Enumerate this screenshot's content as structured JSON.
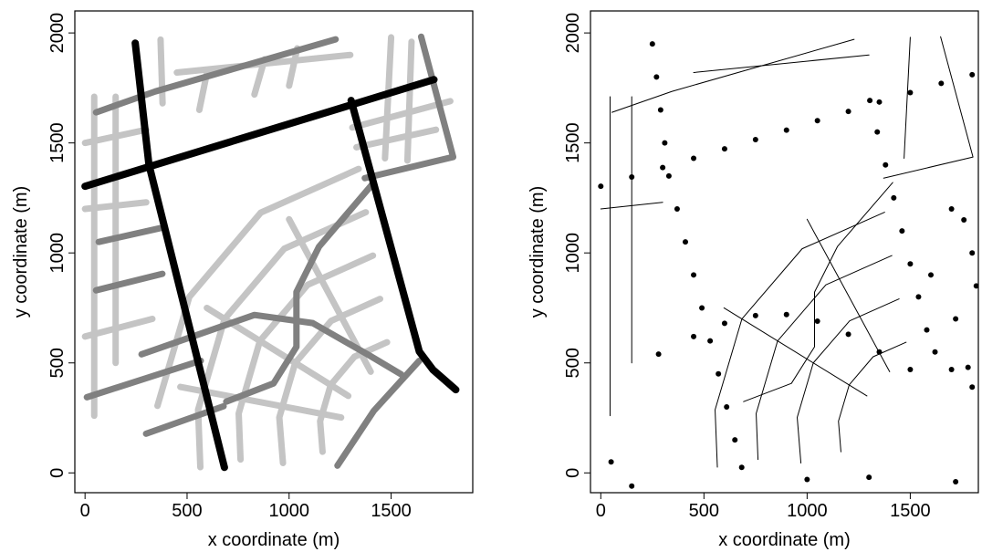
{
  "chart_data": [
    {
      "type": "line",
      "xlabel": "x coordinate (m)",
      "ylabel": "y coordinate (m)",
      "xlim": [
        -50,
        1900
      ],
      "ylim": [
        -90,
        2100
      ],
      "xticks": [
        0,
        500,
        1000,
        1500
      ],
      "yticks": [
        0,
        500,
        1000,
        1500,
        2000
      ],
      "series": [
        {
          "color": "#c4c4c4",
          "width": 7,
          "x": [
            45,
            45
          ],
          "y": [
            1710,
            260
          ]
        },
        {
          "color": "#c4c4c4",
          "width": 7,
          "x": [
            150,
            150
          ],
          "y": [
            1710,
            500
          ]
        },
        {
          "color": "#c4c4c4",
          "width": 7,
          "x": [
            0,
            300
          ],
          "y": [
            1500,
            1560
          ]
        },
        {
          "color": "#c4c4c4",
          "width": 7,
          "x": [
            0,
            300
          ],
          "y": [
            1200,
            1230
          ]
        },
        {
          "color": "#c4c4c4",
          "width": 7,
          "x": [
            0,
            330
          ],
          "y": [
            620,
            700
          ]
        },
        {
          "color": "#c4c4c4",
          "width": 7,
          "x": [
            370,
            380
          ],
          "y": [
            1970,
            1680
          ]
        },
        {
          "color": "#c4c4c4",
          "width": 7,
          "x": [
            600,
            560
          ],
          "y": [
            1830,
            1650
          ]
        },
        {
          "color": "#c4c4c4",
          "width": 7,
          "x": [
            880,
            830
          ],
          "y": [
            1880,
            1720
          ]
        },
        {
          "color": "#c4c4c4",
          "width": 7,
          "x": [
            1040,
            1000
          ],
          "y": [
            1930,
            1760
          ]
        },
        {
          "color": "#c4c4c4",
          "width": 7,
          "x": [
            1500,
            1470
          ],
          "y": [
            1980,
            1430
          ]
        },
        {
          "color": "#c4c4c4",
          "width": 7,
          "x": [
            1600,
            1580
          ],
          "y": [
            1960,
            1420
          ]
        },
        {
          "color": "#c4c4c4",
          "width": 7,
          "x": [
            450,
            1300
          ],
          "y": [
            1820,
            1900
          ]
        },
        {
          "color": "#c4c4c4",
          "width": 7,
          "x": [
            1330,
            1720
          ],
          "y": [
            1480,
            1560
          ]
        },
        {
          "color": "#c4c4c4",
          "width": 7,
          "x": [
            1310,
            1790
          ],
          "y": [
            1570,
            1690
          ]
        },
        {
          "color": "#c4c4c4",
          "width": 7,
          "x": [
            1480,
            1320,
            1204,
            1152,
            1164
          ],
          "y": [
            594,
            528,
            400,
            235,
            96
          ]
        },
        {
          "color": "#c4c4c4",
          "width": 7,
          "x": [
            1446,
            1206,
            1030,
            952,
            970
          ],
          "y": [
            791,
            691,
            500,
            252,
            45
          ]
        },
        {
          "color": "#c4c4c4",
          "width": 7,
          "x": [
            1411,
            1091,
            857,
            753,
            762
          ],
          "y": [
            988,
            855,
            600,
            270,
            61
          ]
        },
        {
          "color": "#c4c4c4",
          "width": 7,
          "x": [
            1376,
            976,
            684,
            554,
            565
          ],
          "y": [
            1185,
            1019,
            700,
            287,
            26
          ]
        },
        {
          "color": "#c4c4c4",
          "width": 7,
          "x": [
            1341,
            861,
            511,
            355
          ],
          "y": [
            1382,
            1183,
            800,
            305
          ]
        },
        {
          "color": "#c4c4c4",
          "width": 7,
          "x": [
            1400,
            1000
          ],
          "y": [
            460,
            1153
          ]
        },
        {
          "color": "#c4c4c4",
          "width": 7,
          "x": [
            1290,
            597
          ],
          "y": [
            350,
            750
          ]
        },
        {
          "color": "#c4c4c4",
          "width": 7,
          "x": [
            1255,
            467
          ],
          "y": [
            252,
            391
          ]
        },
        {
          "color": "#808080",
          "width": 7,
          "x": [
            54,
            344,
            1228
          ],
          "y": [
            1639,
            1734,
            1971
          ]
        },
        {
          "color": "#808080",
          "width": 7,
          "x": [
            1647,
            1804,
            1371
          ],
          "y": [
            1983,
            1436,
            1340
          ]
        },
        {
          "color": "#808080",
          "width": 7,
          "x": [
            67,
            366
          ],
          "y": [
            1050,
            1112
          ]
        },
        {
          "color": "#808080",
          "width": 7,
          "x": [
            54,
            379
          ],
          "y": [
            830,
            905
          ]
        },
        {
          "color": "#808080",
          "width": 7,
          "x": [
            277,
            830,
            1116,
            1384,
            1549
          ],
          "y": [
            539,
            718,
            681,
            539,
            448
          ]
        },
        {
          "color": "#808080",
          "width": 7,
          "x": [
            1415,
            1147,
            1036,
            1036,
            924,
            692
          ],
          "y": [
            1320,
            1029,
            822,
            573,
            407,
            324
          ]
        },
        {
          "color": "#808080",
          "width": 7,
          "x": [
            9,
            567
          ],
          "y": [
            344,
            510
          ]
        },
        {
          "color": "#808080",
          "width": 7,
          "x": [
            299,
            679
          ],
          "y": [
            178,
            303
          ]
        },
        {
          "color": "#808080",
          "width": 7,
          "x": [
            1237,
            1415,
            1638
          ],
          "y": [
            33,
            282,
            510
          ]
        },
        {
          "color": "#000000",
          "width": 8,
          "x": [
            246,
            313,
            683
          ],
          "y": [
            1954,
            1402,
            25
          ]
        },
        {
          "color": "#000000",
          "width": 8,
          "x": [
            0,
            1710
          ],
          "y": [
            1303,
            1788
          ]
        },
        {
          "color": "#000000",
          "width": 8,
          "x": [
            1304,
            1638,
            1705,
            1817
          ],
          "y": [
            1693,
            552,
            469,
            378
          ]
        }
      ]
    },
    {
      "type": "scatter",
      "xlabel": "x coordinate (m)",
      "ylabel": "y coordinate (m)",
      "xlim": [
        -50,
        1830
      ],
      "ylim": [
        -90,
        2100
      ],
      "xticks": [
        0,
        500,
        1000,
        1500
      ],
      "yticks": [
        0,
        500,
        1000,
        1500,
        2000
      ],
      "series": [
        {
          "color": "#000000",
          "width": 1,
          "x": [
            45,
            45
          ],
          "y": [
            1710,
            260
          ]
        },
        {
          "color": "#000000",
          "width": 1,
          "x": [
            150,
            150
          ],
          "y": [
            1710,
            500
          ]
        },
        {
          "color": "#000000",
          "width": 1,
          "x": [
            0,
            300
          ],
          "y": [
            1200,
            1230
          ]
        },
        {
          "color": "#000000",
          "width": 1,
          "x": [
            54,
            344,
            1228
          ],
          "y": [
            1639,
            1734,
            1971
          ]
        },
        {
          "color": "#000000",
          "width": 1,
          "x": [
            1647,
            1804,
            1371
          ],
          "y": [
            1983,
            1436,
            1340
          ]
        },
        {
          "color": "#000000",
          "width": 1,
          "x": [
            1480,
            1320,
            1204,
            1152,
            1164
          ],
          "y": [
            594,
            528,
            400,
            235,
            96
          ]
        },
        {
          "color": "#000000",
          "width": 1,
          "x": [
            1446,
            1206,
            1030,
            952,
            970
          ],
          "y": [
            791,
            691,
            500,
            252,
            45
          ]
        },
        {
          "color": "#000000",
          "width": 1,
          "x": [
            1411,
            1091,
            857,
            753,
            762
          ],
          "y": [
            988,
            855,
            600,
            270,
            61
          ]
        },
        {
          "color": "#000000",
          "width": 1,
          "x": [
            1376,
            976,
            684,
            554,
            565
          ],
          "y": [
            1185,
            1019,
            700,
            287,
            26
          ]
        },
        {
          "color": "#000000",
          "width": 1,
          "x": [
            1400,
            1000
          ],
          "y": [
            460,
            1153
          ]
        },
        {
          "color": "#000000",
          "width": 1,
          "x": [
            1290,
            597
          ],
          "y": [
            350,
            750
          ]
        },
        {
          "color": "#000000",
          "width": 1,
          "x": [
            1415,
            1147,
            1036,
            1036,
            924,
            692
          ],
          "y": [
            1320,
            1029,
            822,
            573,
            407,
            324
          ]
        },
        {
          "color": "#000000",
          "width": 1,
          "x": [
            450,
            1300
          ],
          "y": [
            1820,
            1900
          ]
        },
        {
          "color": "#000000",
          "width": 1,
          "x": [
            1500,
            1470
          ],
          "y": [
            1980,
            1430
          ]
        }
      ],
      "points": {
        "color": "#000000",
        "x": [
          250,
          270,
          290,
          310,
          330,
          370,
          410,
          450,
          490,
          530,
          570,
          610,
          650,
          683,
          0,
          150,
          300,
          450,
          600,
          750,
          900,
          1050,
          1200,
          1350,
          1500,
          1650,
          1800,
          1304,
          1340,
          1380,
          1420,
          1460,
          1500,
          1540,
          1580,
          1620,
          1700,
          1800,
          280,
          450,
          600,
          750,
          900,
          1050,
          1200,
          1350,
          1500,
          1700,
          1760,
          1800,
          1600,
          1720,
          1820,
          50,
          1720,
          1300,
          1000,
          150,
          1780
        ],
        "y": [
          1950,
          1800,
          1650,
          1500,
          1350,
          1200,
          1050,
          900,
          750,
          600,
          450,
          300,
          150,
          25,
          1303,
          1345,
          1388,
          1430,
          1473,
          1515,
          1558,
          1601,
          1643,
          1686,
          1729,
          1771,
          1810,
          1693,
          1550,
          1400,
          1250,
          1100,
          950,
          800,
          650,
          550,
          470,
          390,
          540,
          620,
          680,
          715,
          720,
          690,
          630,
          550,
          470,
          1200,
          1150,
          1000,
          900,
          700,
          850,
          50,
          -40,
          -20,
          -30,
          -60,
          480
        ]
      }
    }
  ]
}
